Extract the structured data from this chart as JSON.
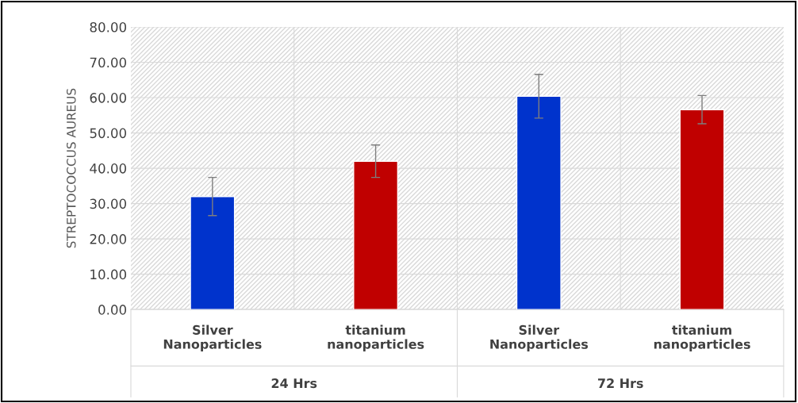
{
  "chart_data": {
    "type": "bar",
    "ylabel": "STREPTOCOCCUS AUREUS",
    "categories": [
      "Silver\nNanoparticles",
      "titanium\nnanoparticles",
      "Silver\nNanoparticles",
      "titanium\nnanoparticles"
    ],
    "values": [
      32.0,
      42.0,
      60.4,
      56.6
    ],
    "colors": [
      "#0033cc",
      "#c00000",
      "#0033cc",
      "#c00000"
    ],
    "errors": [
      5.4,
      4.6,
      6.2,
      4.0
    ],
    "annotations": [
      "24 Hrs",
      "72 Hrs"
    ],
    "ylim": [
      0,
      80
    ],
    "yticks": [
      {
        "value": 0,
        "label": "0.00"
      },
      {
        "value": 10,
        "label": "10.00"
      },
      {
        "value": 20,
        "label": "20.00"
      },
      {
        "value": 30,
        "label": "30.00"
      },
      {
        "value": 40,
        "label": "40.00"
      },
      {
        "value": 50,
        "label": "50.00"
      },
      {
        "value": 60,
        "label": "60.00"
      },
      {
        "value": 70,
        "label": "70.00"
      },
      {
        "value": 80,
        "label": "80.00"
      }
    ],
    "grid": "y"
  }
}
